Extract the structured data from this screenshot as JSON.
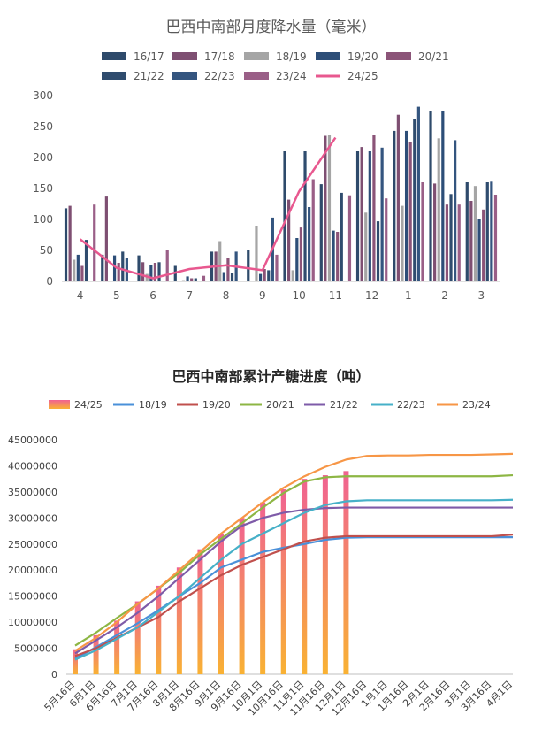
{
  "chart_data": [
    {
      "type": "bar",
      "title": "巴西中南部月度降水量（毫米）",
      "categories": [
        "4",
        "5",
        "6",
        "7",
        "8",
        "9",
        "10",
        "11",
        "12",
        "1",
        "2",
        "3"
      ],
      "ylim": [
        0,
        300
      ],
      "yticks": [
        "0",
        "50",
        "100",
        "150",
        "200",
        "250",
        "300"
      ],
      "grid": false,
      "legend_position": "top",
      "series": [
        {
          "name": "16/17",
          "kind": "bar",
          "color": "#2e4a6b",
          "values": [
            118,
            43,
            42,
            25,
            48,
            50,
            210,
            157,
            210,
            243,
            275,
            160
          ]
        },
        {
          "name": "17/18",
          "kind": "bar",
          "color": "#7e4f72",
          "values": [
            122,
            137,
            31,
            0,
            48,
            0,
            132,
            235,
            217,
            269,
            158,
            130
          ]
        },
        {
          "name": "18/19",
          "kind": "bar",
          "color": "#a5a5a5",
          "values": [
            35,
            0,
            12,
            2,
            65,
            90,
            18,
            237,
            111,
            122,
            231,
            154
          ]
        },
        {
          "name": "19/20",
          "kind": "bar",
          "color": "#2d4e78",
          "values": [
            43,
            42,
            27,
            8,
            15,
            12,
            70,
            82,
            210,
            243,
            275,
            100
          ]
        },
        {
          "name": "20/21",
          "kind": "bar",
          "color": "#8b5478",
          "values": [
            25,
            30,
            30,
            5,
            38,
            20,
            87,
            80,
            237,
            225,
            124,
            116
          ]
        },
        {
          "name": "21/22",
          "kind": "bar",
          "color": "#2f4c6e",
          "values": [
            67,
            48,
            31,
            5,
            14,
            18,
            210,
            143,
            97,
            262,
            141,
            160
          ]
        },
        {
          "name": "22/23",
          "kind": "bar",
          "color": "#34557f",
          "values": [
            0,
            38,
            0,
            0,
            48,
            103,
            120,
            0,
            216,
            282,
            228,
            161
          ]
        },
        {
          "name": "23/24",
          "kind": "bar",
          "color": "#9a5f87",
          "values": [
            124,
            0,
            51,
            9,
            0,
            43,
            165,
            139,
            134,
            160,
            124,
            140
          ]
        },
        {
          "name": "24/25",
          "kind": "line",
          "color": "#e8588f",
          "values": [
            68,
            22,
            5,
            20,
            26,
            18,
            145,
            232,
            null,
            null,
            null,
            null
          ]
        }
      ]
    },
    {
      "type": "bar",
      "title": "巴西中南部累计产糖进度（吨）",
      "categories": [
        "5月16日",
        "6月1日",
        "6月16日",
        "7月1日",
        "7月16日",
        "8月1日",
        "8月16日",
        "9月1日",
        "9月16日",
        "10月1日",
        "10月16日",
        "11月1日",
        "11月16日",
        "12月1日",
        "12月16日",
        "1月1日",
        "1月16日",
        "2月1日",
        "2月16日",
        "3月1日",
        "3月16日",
        "4月1日"
      ],
      "ylim": [
        0,
        45000000
      ],
      "yticks": [
        "0",
        "5000000",
        "10000000",
        "15000000",
        "20000000",
        "25000000",
        "30000000",
        "35000000",
        "40000000",
        "45000000"
      ],
      "grid": false,
      "legend_position": "top",
      "series": [
        {
          "name": "24/25",
          "kind": "bar",
          "color": "#f06292",
          "values": [
            4800000,
            7500000,
            10300000,
            14000000,
            17000000,
            20500000,
            24000000,
            27000000,
            30000000,
            33000000,
            35500000,
            37500000,
            38200000,
            39000000,
            null,
            null,
            null,
            null,
            null,
            null,
            null,
            null
          ]
        },
        {
          "name": "18/19",
          "kind": "line",
          "color": "#4a90d9",
          "values": [
            3000000,
            5200000,
            7500000,
            9800000,
            12300000,
            15000000,
            17500000,
            20500000,
            22000000,
            23500000,
            24300000,
            25000000,
            25800000,
            26200000,
            26300000,
            26300000,
            26300000,
            26300000,
            26300000,
            26300000,
            26300000,
            26300000
          ]
        },
        {
          "name": "19/20",
          "kind": "line",
          "color": "#c0504d",
          "values": [
            3500000,
            5000000,
            7000000,
            9000000,
            11000000,
            14000000,
            16500000,
            19000000,
            21000000,
            22500000,
            24000000,
            25500000,
            26200000,
            26500000,
            26500000,
            26500000,
            26500000,
            26500000,
            26500000,
            26500000,
            26500000,
            26800000
          ]
        },
        {
          "name": "20/21",
          "kind": "line",
          "color": "#8db644",
          "values": [
            5500000,
            8000000,
            10800000,
            13500000,
            16500000,
            19500000,
            23000000,
            26000000,
            29000000,
            32000000,
            34800000,
            37000000,
            37800000,
            38000000,
            38000000,
            38000000,
            38000000,
            38000000,
            38000000,
            38000000,
            38000000,
            38200000
          ]
        },
        {
          "name": "21/22",
          "kind": "line",
          "color": "#7e5ba8",
          "values": [
            4000000,
            6500000,
            9000000,
            11800000,
            15000000,
            18500000,
            22000000,
            25500000,
            28500000,
            30000000,
            31000000,
            31600000,
            31900000,
            32000000,
            32000000,
            32000000,
            32000000,
            32000000,
            32000000,
            32000000,
            32000000,
            32000000
          ]
        },
        {
          "name": "22/23",
          "kind": "line",
          "color": "#46b0c8",
          "values": [
            2800000,
            4600000,
            6800000,
            9000000,
            12000000,
            15000000,
            18500000,
            22000000,
            25000000,
            27000000,
            29000000,
            31000000,
            32500000,
            33200000,
            33400000,
            33400000,
            33400000,
            33400000,
            33400000,
            33400000,
            33400000,
            33500000
          ]
        },
        {
          "name": "23/24",
          "kind": "line",
          "color": "#f79646",
          "values": [
            4500000,
            7000000,
            10000000,
            13500000,
            16500000,
            20000000,
            23500000,
            27000000,
            30000000,
            33000000,
            35800000,
            38000000,
            39800000,
            41200000,
            41900000,
            42000000,
            42000000,
            42100000,
            42100000,
            42100000,
            42200000,
            42300000
          ]
        }
      ]
    }
  ]
}
